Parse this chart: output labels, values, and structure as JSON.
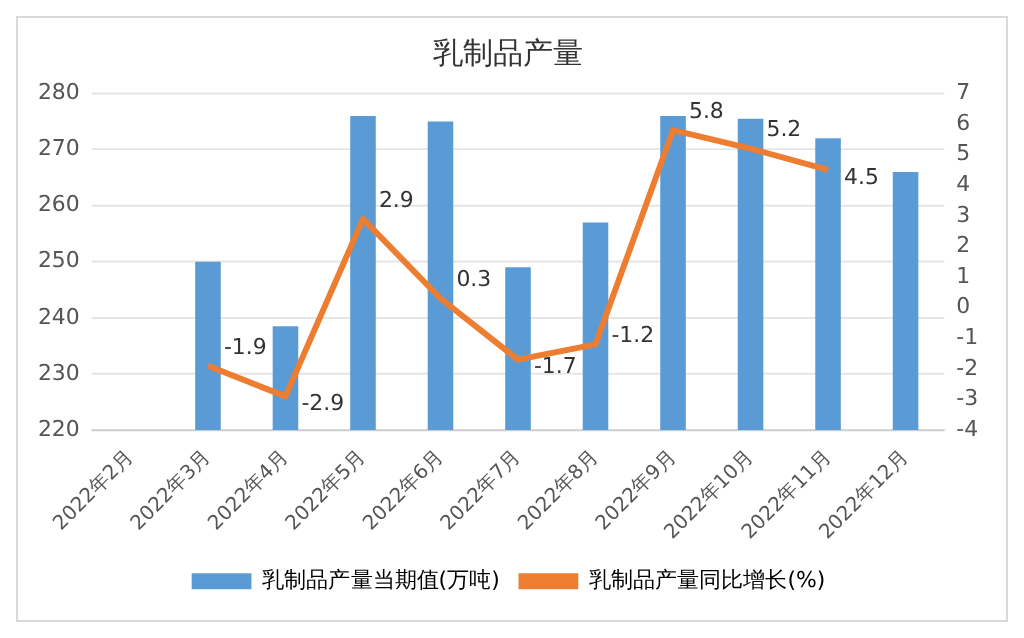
{
  "chart_data": {
    "type": "bar",
    "title": "乳制品产量",
    "categories": [
      "2022年2月",
      "2022年3月",
      "2022年4月",
      "2022年5月",
      "2022年6月",
      "2022年7月",
      "2022年8月",
      "2022年9月",
      "2022年10月",
      "2022年11月",
      "2022年12月"
    ],
    "series": [
      {
        "name": "乳制品产量当期值(万吨)",
        "color": "#5b9bd5",
        "values": [
          null,
          250,
          238.5,
          276,
          275,
          249,
          257,
          276,
          275.5,
          272,
          266
        ]
      },
      {
        "name": "乳制品产量同比增长(%)",
        "type": "line",
        "axis": "y2",
        "color": "#ed7d31",
        "values": [
          null,
          -1.9,
          -2.9,
          2.9,
          0.3,
          -1.7,
          -1.2,
          5.8,
          5.2,
          4.5,
          null
        ],
        "value_labels": [
          null,
          "-1.9",
          "-2.9",
          "2.9",
          "0.3",
          "-1.7",
          "-1.2",
          "5.8",
          "5.2",
          "4.5",
          null
        ]
      }
    ],
    "ylim": [
      220,
      280
    ],
    "yticks": [
      220,
      230,
      240,
      250,
      260,
      270,
      280
    ],
    "y2lim": [
      -4,
      7
    ],
    "y2ticks": [
      -4,
      -3,
      -2,
      -1,
      0,
      1,
      2,
      3,
      4,
      5,
      6,
      7
    ],
    "grid": "y",
    "legend": "bottom",
    "marker": "none"
  }
}
